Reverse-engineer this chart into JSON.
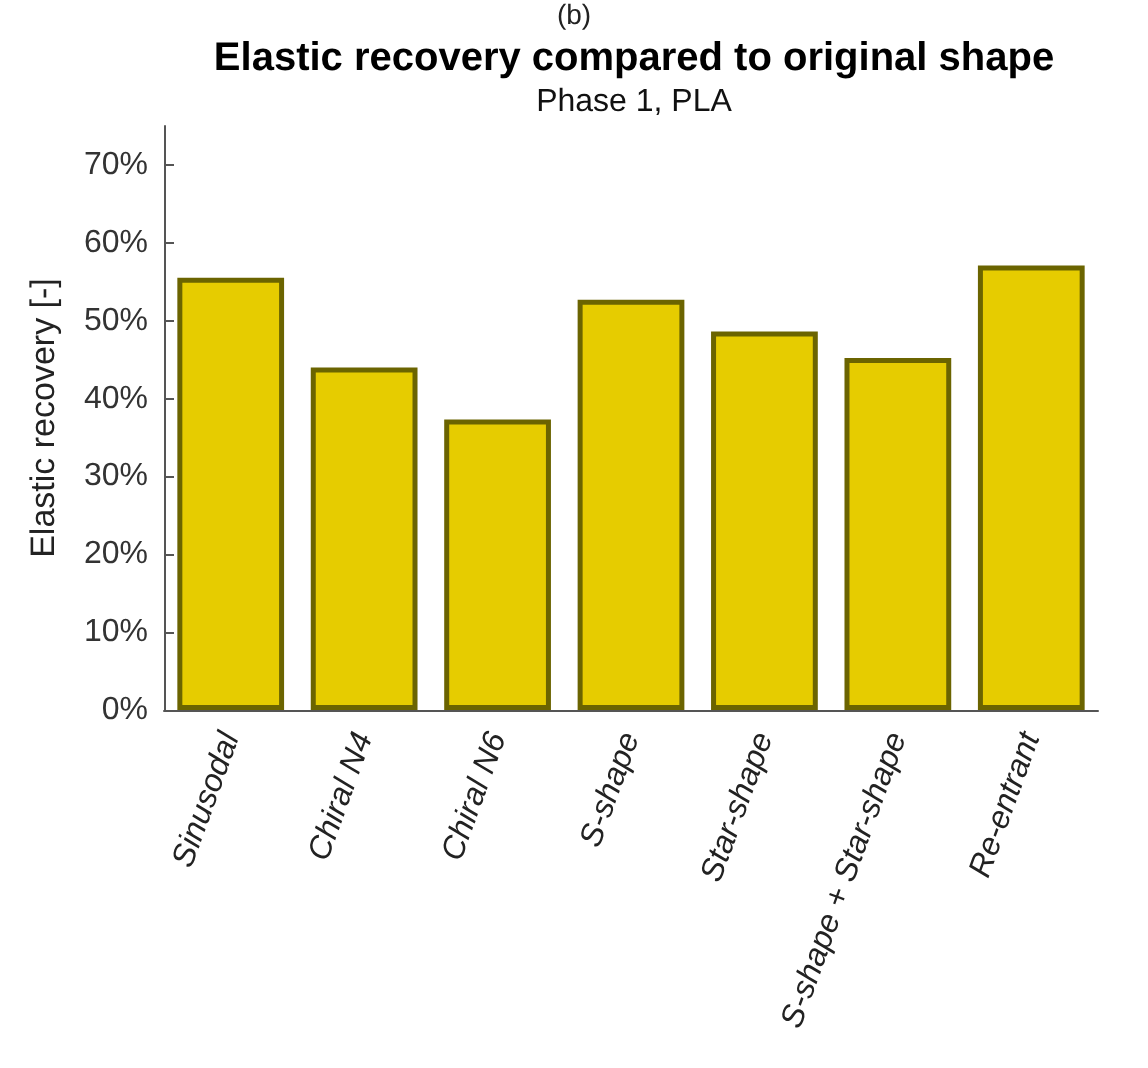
{
  "chart_data": {
    "type": "bar",
    "title": "Elastic recovery compared to original shape",
    "subtitle": "Phase 1, PLA",
    "ylabel": "Elastic recovery [-]",
    "annotations": [
      "(b)"
    ],
    "categories": [
      "Sinusodal",
      "Chiral N4",
      "Chiral N6",
      "S-shape",
      "Star-shape",
      "S-shape + Star-shape",
      "Re-entrant"
    ],
    "values": [
      55.5,
      44,
      37.3,
      52.7,
      48.6,
      45.2,
      57.1
    ],
    "color": "#e6cc00",
    "ylim": [
      0,
      75
    ],
    "yticks": [
      {
        "value": 0,
        "label": "0%"
      },
      {
        "value": 10,
        "label": "10%"
      },
      {
        "value": 20,
        "label": "20%"
      },
      {
        "value": 30,
        "label": "30%"
      },
      {
        "value": 40,
        "label": "40%"
      },
      {
        "value": 50,
        "label": "50%"
      },
      {
        "value": 60,
        "label": "60%"
      },
      {
        "value": 70,
        "label": "70%"
      }
    ],
    "grid": false
  }
}
